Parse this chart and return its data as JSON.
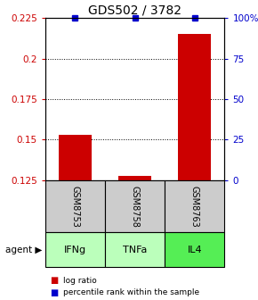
{
  "title": "GDS502 / 3782",
  "samples": [
    "GSM8753",
    "GSM8758",
    "GSM8763"
  ],
  "agents": [
    "IFNg",
    "TNFa",
    "IL4"
  ],
  "bar_values": [
    0.153,
    0.1275,
    0.215
  ],
  "bar_baseline": 0.125,
  "percentile_values": [
    100,
    100,
    100
  ],
  "ylim_left": [
    0.125,
    0.225
  ],
  "ylim_right": [
    0,
    100
  ],
  "yticks_left": [
    0.125,
    0.15,
    0.175,
    0.2,
    0.225
  ],
  "yticks_right": [
    0,
    25,
    50,
    75,
    100
  ],
  "ytick_labels_left": [
    "0.125",
    "0.15",
    "0.175",
    "0.2",
    "0.225"
  ],
  "ytick_labels_right": [
    "0",
    "25",
    "50",
    "75",
    "100%"
  ],
  "bar_color": "#cc0000",
  "percentile_color": "#0000cc",
  "agent_colors": [
    "#bbffbb",
    "#bbffbb",
    "#55ee55"
  ],
  "sample_box_color": "#cccccc",
  "title_fontsize": 10,
  "tick_fontsize": 7.5,
  "bar_width": 0.55,
  "legend_red": "log ratio",
  "legend_blue": "percentile rank within the sample"
}
